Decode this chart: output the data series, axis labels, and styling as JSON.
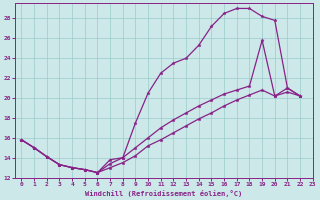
{
  "bg_color": "#cce8e8",
  "line_color": "#882288",
  "grid_color": "#99cccc",
  "xlabel": "Windchill (Refroidissement éolien,°C)",
  "xlim": [
    -0.5,
    23
  ],
  "ylim": [
    12,
    29.5
  ],
  "yticks": [
    12,
    14,
    16,
    18,
    20,
    22,
    24,
    26,
    28
  ],
  "xticks": [
    0,
    1,
    2,
    3,
    4,
    5,
    6,
    7,
    8,
    9,
    10,
    11,
    12,
    13,
    14,
    15,
    16,
    17,
    18,
    19,
    20,
    21,
    22,
    23
  ],
  "line1_x": [
    0,
    1,
    2,
    3,
    4,
    5,
    6,
    7,
    8,
    9,
    10,
    11,
    12,
    13,
    14,
    15,
    16,
    17,
    18,
    19,
    20,
    21,
    22
  ],
  "line1_y": [
    15.8,
    15.0,
    14.1,
    13.3,
    13.0,
    12.8,
    12.5,
    13.8,
    14.0,
    17.5,
    20.5,
    22.5,
    23.5,
    24.0,
    25.3,
    27.2,
    28.5,
    29.0,
    29.0,
    28.2,
    27.8,
    21.0,
    20.2
  ],
  "line2_x": [
    0,
    1,
    2,
    3,
    4,
    5,
    6,
    7,
    8,
    9,
    10,
    11,
    12,
    13,
    14,
    15,
    16,
    17,
    18,
    19,
    20,
    21,
    22
  ],
  "line2_y": [
    15.8,
    15.0,
    14.1,
    13.3,
    13.0,
    12.8,
    12.5,
    13.4,
    14.0,
    15.0,
    16.0,
    17.0,
    17.8,
    18.5,
    19.2,
    19.8,
    20.4,
    20.8,
    21.2,
    25.8,
    20.2,
    21.0,
    20.2
  ],
  "line3_x": [
    0,
    1,
    2,
    3,
    4,
    5,
    6,
    7,
    8,
    9,
    10,
    11,
    12,
    13,
    14,
    15,
    16,
    17,
    18,
    19,
    20,
    21,
    22
  ],
  "line3_y": [
    15.8,
    15.0,
    14.1,
    13.3,
    13.0,
    12.8,
    12.5,
    13.0,
    13.5,
    14.2,
    15.2,
    15.8,
    16.5,
    17.2,
    17.9,
    18.5,
    19.2,
    19.8,
    20.3,
    20.8,
    20.2,
    20.6,
    20.2
  ]
}
